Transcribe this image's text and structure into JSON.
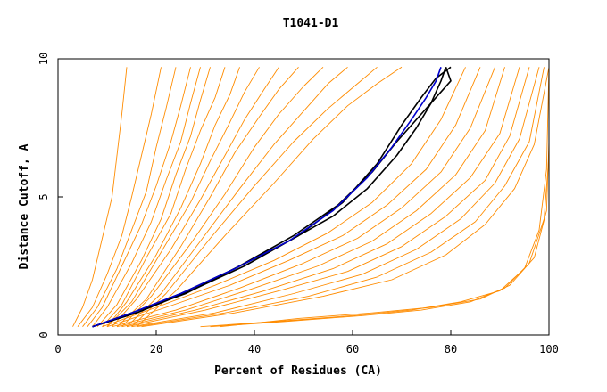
{
  "chart_data": {
    "type": "line",
    "title": "T1041-D1",
    "xlabel": "Percent of Residues (CA)",
    "ylabel": "Distance Cutoff, A",
    "xlim": [
      0,
      100
    ],
    "ylim": [
      0,
      10
    ],
    "xticks": [
      0,
      20,
      40,
      60,
      80,
      100
    ],
    "yticks": [
      0,
      5,
      10
    ],
    "grid": false,
    "colors": {
      "models": "#ff8c00",
      "highlight_black": "#000000",
      "highlight_blue": "#0000cd"
    },
    "series": [
      {
        "group": "fast",
        "color": "#ff8c00",
        "points": [
          [
            3,
            0.3
          ],
          [
            5,
            1
          ],
          [
            7,
            2
          ],
          [
            9,
            3.5
          ],
          [
            11,
            5
          ],
          [
            12,
            6.5
          ],
          [
            13,
            8
          ],
          [
            14,
            9.7
          ]
        ]
      },
      {
        "group": "fast",
        "color": "#ff8c00",
        "points": [
          [
            4,
            0.3
          ],
          [
            7,
            1
          ],
          [
            10,
            2.2
          ],
          [
            13,
            3.6
          ],
          [
            15,
            5
          ],
          [
            17,
            6.5
          ],
          [
            19,
            8
          ],
          [
            21,
            9.7
          ]
        ]
      },
      {
        "group": "fast",
        "color": "#ff8c00",
        "points": [
          [
            5,
            0.3
          ],
          [
            8,
            1
          ],
          [
            12,
            2.4
          ],
          [
            15,
            3.8
          ],
          [
            18,
            5.2
          ],
          [
            20,
            6.8
          ],
          [
            22,
            8.2
          ],
          [
            24,
            9.7
          ]
        ]
      },
      {
        "group": "fast",
        "color": "#ff8c00",
        "points": [
          [
            6,
            0.3
          ],
          [
            9,
            1
          ],
          [
            13,
            2.5
          ],
          [
            17,
            4
          ],
          [
            20,
            5.4
          ],
          [
            23,
            7
          ],
          [
            25,
            8.3
          ],
          [
            27,
            9.7
          ]
        ]
      },
      {
        "group": "fast",
        "color": "#ff8c00",
        "points": [
          [
            7,
            0.3
          ],
          [
            10,
            1
          ],
          [
            15,
            2.6
          ],
          [
            19,
            4.1
          ],
          [
            22,
            5.6
          ],
          [
            25,
            7
          ],
          [
            27,
            8.4
          ],
          [
            29,
            9.7
          ]
        ]
      },
      {
        "group": "fast",
        "color": "#ff8c00",
        "points": [
          [
            8,
            0.3
          ],
          [
            12,
            1.1
          ],
          [
            17,
            2.7
          ],
          [
            21,
            4.2
          ],
          [
            24,
            5.8
          ],
          [
            27,
            7.2
          ],
          [
            29,
            8.5
          ],
          [
            31,
            9.7
          ]
        ]
      },
      {
        "group": "fast",
        "color": "#ff8c00",
        "points": [
          [
            9,
            0.3
          ],
          [
            13,
            1.1
          ],
          [
            18,
            2.8
          ],
          [
            23,
            4.4
          ],
          [
            26,
            6
          ],
          [
            29,
            7.4
          ],
          [
            32,
            8.6
          ],
          [
            34,
            9.7
          ]
        ]
      },
      {
        "group": "fast",
        "color": "#ff8c00",
        "points": [
          [
            10,
            0.3
          ],
          [
            14,
            1.2
          ],
          [
            20,
            2.9
          ],
          [
            25,
            4.6
          ],
          [
            29,
            6.2
          ],
          [
            32,
            7.6
          ],
          [
            35,
            8.7
          ],
          [
            37,
            9.7
          ]
        ]
      },
      {
        "group": "fast",
        "color": "#ff8c00",
        "points": [
          [
            10,
            0.3
          ],
          [
            15,
            1.2
          ],
          [
            21,
            3
          ],
          [
            27,
            4.8
          ],
          [
            31,
            6.3
          ],
          [
            35,
            7.7
          ],
          [
            38,
            8.8
          ],
          [
            41,
            9.7
          ]
        ]
      },
      {
        "group": "fast",
        "color": "#ff8c00",
        "points": [
          [
            11,
            0.3
          ],
          [
            16,
            1.3
          ],
          [
            23,
            3.1
          ],
          [
            29,
            4.9
          ],
          [
            34,
            6.5
          ],
          [
            38,
            7.8
          ],
          [
            42,
            8.9
          ],
          [
            45,
            9.7
          ]
        ]
      },
      {
        "group": "fast",
        "color": "#ff8c00",
        "points": [
          [
            12,
            0.3
          ],
          [
            18,
            1.3
          ],
          [
            25,
            3.2
          ],
          [
            31,
            5
          ],
          [
            36,
            6.6
          ],
          [
            41,
            7.9
          ],
          [
            45,
            8.9
          ],
          [
            49,
            9.7
          ]
        ]
      },
      {
        "group": "fast",
        "color": "#ff8c00",
        "points": [
          [
            13,
            0.3
          ],
          [
            19,
            1.4
          ],
          [
            27,
            3.3
          ],
          [
            34,
            5.1
          ],
          [
            40,
            6.8
          ],
          [
            45,
            8
          ],
          [
            50,
            9
          ],
          [
            54,
            9.7
          ]
        ]
      },
      {
        "group": "fast",
        "color": "#ff8c00",
        "points": [
          [
            14,
            0.3
          ],
          [
            21,
            1.5
          ],
          [
            29,
            3.4
          ],
          [
            37,
            5.3
          ],
          [
            44,
            6.9
          ],
          [
            50,
            8.1
          ],
          [
            55,
            9.1
          ],
          [
            59,
            9.7
          ]
        ]
      },
      {
        "group": "fast",
        "color": "#ff8c00",
        "points": [
          [
            15,
            0.3
          ],
          [
            22,
            1.5
          ],
          [
            31,
            3.5
          ],
          [
            40,
            5.4
          ],
          [
            48,
            7
          ],
          [
            55,
            8.2
          ],
          [
            61,
            9.1
          ],
          [
            65,
            9.7
          ]
        ]
      },
      {
        "group": "fast",
        "color": "#ff8c00",
        "points": [
          [
            16,
            0.3
          ],
          [
            24,
            1.6
          ],
          [
            34,
            3.6
          ],
          [
            44,
            5.5
          ],
          [
            52,
            7.1
          ],
          [
            59,
            8.3
          ],
          [
            65,
            9.1
          ],
          [
            70,
            9.7
          ]
        ]
      },
      {
        "group": "slow",
        "color": "#ff8c00",
        "points": [
          [
            9,
            0.3
          ],
          [
            20,
            1
          ],
          [
            32,
            1.8
          ],
          [
            44,
            2.7
          ],
          [
            55,
            3.7
          ],
          [
            64,
            4.8
          ],
          [
            72,
            6.2
          ],
          [
            78,
            7.8
          ],
          [
            83,
            9.7
          ]
        ]
      },
      {
        "group": "slow",
        "color": "#ff8c00",
        "points": [
          [
            10,
            0.3
          ],
          [
            22,
            1
          ],
          [
            35,
            1.8
          ],
          [
            47,
            2.7
          ],
          [
            58,
            3.6
          ],
          [
            67,
            4.7
          ],
          [
            75,
            6
          ],
          [
            81,
            7.6
          ],
          [
            86,
            9.7
          ]
        ]
      },
      {
        "group": "slow",
        "color": "#ff8c00",
        "points": [
          [
            11,
            0.3
          ],
          [
            24,
            0.9
          ],
          [
            37,
            1.7
          ],
          [
            50,
            2.6
          ],
          [
            61,
            3.5
          ],
          [
            70,
            4.6
          ],
          [
            78,
            5.9
          ],
          [
            84,
            7.5
          ],
          [
            89,
            9.7
          ]
        ]
      },
      {
        "group": "slow",
        "color": "#ff8c00",
        "points": [
          [
            12,
            0.3
          ],
          [
            26,
            0.9
          ],
          [
            40,
            1.7
          ],
          [
            53,
            2.5
          ],
          [
            64,
            3.4
          ],
          [
            73,
            4.5
          ],
          [
            81,
            5.8
          ],
          [
            87,
            7.4
          ],
          [
            91,
            9.7
          ]
        ]
      },
      {
        "group": "slow",
        "color": "#ff8c00",
        "points": [
          [
            13,
            0.3
          ],
          [
            28,
            0.9
          ],
          [
            42,
            1.6
          ],
          [
            56,
            2.4
          ],
          [
            67,
            3.3
          ],
          [
            76,
            4.4
          ],
          [
            84,
            5.7
          ],
          [
            90,
            7.3
          ],
          [
            94,
            9.7
          ]
        ]
      },
      {
        "group": "slow",
        "color": "#ff8c00",
        "points": [
          [
            14,
            0.3
          ],
          [
            30,
            0.9
          ],
          [
            45,
            1.6
          ],
          [
            59,
            2.3
          ],
          [
            70,
            3.2
          ],
          [
            79,
            4.3
          ],
          [
            87,
            5.6
          ],
          [
            92,
            7.2
          ],
          [
            96,
            9.7
          ]
        ]
      },
      {
        "group": "slow",
        "color": "#ff8c00",
        "points": [
          [
            15,
            0.3
          ],
          [
            32,
            0.8
          ],
          [
            48,
            1.5
          ],
          [
            62,
            2.2
          ],
          [
            73,
            3.1
          ],
          [
            82,
            4.2
          ],
          [
            89,
            5.5
          ],
          [
            94,
            7.1
          ],
          [
            98,
            9.7
          ]
        ]
      },
      {
        "group": "slow",
        "color": "#ff8c00",
        "points": [
          [
            16,
            0.3
          ],
          [
            34,
            0.8
          ],
          [
            51,
            1.4
          ],
          [
            65,
            2.1
          ],
          [
            76,
            3
          ],
          [
            85,
            4.1
          ],
          [
            91,
            5.4
          ],
          [
            96,
            7
          ],
          [
            99,
            9.7
          ]
        ]
      },
      {
        "group": "slow",
        "color": "#ff8c00",
        "points": [
          [
            17,
            0.3
          ],
          [
            36,
            0.8
          ],
          [
            54,
            1.4
          ],
          [
            68,
            2
          ],
          [
            79,
            2.9
          ],
          [
            87,
            4
          ],
          [
            93,
            5.3
          ],
          [
            97,
            6.9
          ],
          [
            100,
            9.7
          ]
        ]
      },
      {
        "group": "bottom",
        "color": "#ff8c00",
        "points": [
          [
            29,
            0.3
          ],
          [
            45,
            0.5
          ],
          [
            60,
            0.7
          ],
          [
            72,
            0.9
          ],
          [
            82,
            1.2
          ],
          [
            90,
            1.6
          ],
          [
            95,
            2.4
          ],
          [
            98,
            3.8
          ],
          [
            99.5,
            6
          ],
          [
            100,
            9.7
          ]
        ]
      },
      {
        "group": "bottom",
        "color": "#ff8c00",
        "points": [
          [
            31,
            0.3
          ],
          [
            47,
            0.5
          ],
          [
            62,
            0.7
          ],
          [
            74,
            0.9
          ],
          [
            84,
            1.2
          ],
          [
            91,
            1.7
          ],
          [
            96,
            2.6
          ],
          [
            99,
            4.2
          ],
          [
            100,
            6.5
          ]
        ]
      },
      {
        "group": "bottom",
        "color": "#ff8c00",
        "points": [
          [
            33,
            0.3
          ],
          [
            49,
            0.6
          ],
          [
            64,
            0.8
          ],
          [
            76,
            1
          ],
          [
            86,
            1.3
          ],
          [
            92,
            1.8
          ],
          [
            97,
            2.8
          ],
          [
            99.5,
            4.5
          ],
          [
            100,
            7
          ]
        ]
      },
      {
        "group": "highlight",
        "color": "#000000",
        "points": [
          [
            7,
            0.3
          ],
          [
            15,
            0.8
          ],
          [
            25,
            1.5
          ],
          [
            36,
            2.4
          ],
          [
            47,
            3.4
          ],
          [
            56,
            4.3
          ],
          [
            63,
            5.3
          ],
          [
            69,
            6.5
          ],
          [
            73,
            7.5
          ],
          [
            76,
            8.4
          ],
          [
            78,
            9.2
          ],
          [
            79,
            9.7
          ]
        ]
      },
      {
        "group": "highlight",
        "color": "#000000",
        "points": [
          [
            7,
            0.3
          ],
          [
            16,
            0.8
          ],
          [
            27,
            1.6
          ],
          [
            38,
            2.5
          ],
          [
            49,
            3.6
          ],
          [
            58,
            4.8
          ],
          [
            65,
            6.2
          ],
          [
            70,
            7.6
          ],
          [
            74,
            8.6
          ],
          [
            77,
            9.3
          ],
          [
            80,
            9.7
          ]
        ]
      },
      {
        "group": "highlight",
        "color": "#000000",
        "points": [
          [
            7,
            0.3
          ],
          [
            15,
            0.8
          ],
          [
            26,
            1.5
          ],
          [
            37,
            2.5
          ],
          [
            48,
            3.6
          ],
          [
            57,
            4.7
          ],
          [
            64,
            5.9
          ],
          [
            69,
            7
          ],
          [
            74,
            8
          ],
          [
            78,
            8.8
          ],
          [
            80,
            9.2
          ],
          [
            79,
            9.7
          ]
        ]
      },
      {
        "group": "highlight",
        "color": "#0000cd",
        "points": [
          [
            7,
            0.3
          ],
          [
            15,
            0.8
          ],
          [
            25,
            1.5
          ],
          [
            36,
            2.4
          ],
          [
            47,
            3.4
          ],
          [
            56,
            4.5
          ],
          [
            63,
            5.7
          ],
          [
            68,
            6.8
          ],
          [
            72,
            7.8
          ],
          [
            75,
            8.6
          ],
          [
            77,
            9.2
          ],
          [
            78,
            9.7
          ]
        ]
      }
    ]
  }
}
